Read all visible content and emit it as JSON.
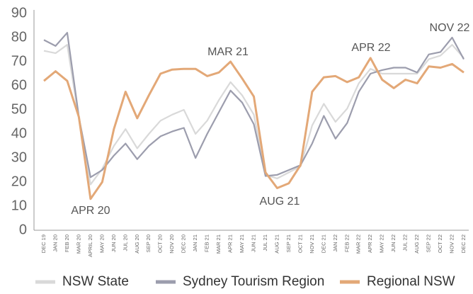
{
  "chart_data": {
    "type": "line",
    "categories": [
      "DEC 19",
      "JAN 20",
      "FEB 20",
      "MAR 20",
      "APRIL 20",
      "MAY 20",
      "JUN 20",
      "JUL 20",
      "AUG 20",
      "SEP 20",
      "OCT 20",
      "NOV 20",
      "DEC 20",
      "JAN 21",
      "FEB 21",
      "MAR 21",
      "APR 21",
      "MAY 21",
      "JUN 21",
      "JUL 21",
      "AUG 21",
      "SEP 21",
      "OCT 21",
      "NOV 21",
      "DEC 21",
      "JAN 22",
      "FEB 22",
      "MAR 22",
      "APR 22",
      "MAY 22",
      "JUN 22",
      "JUL 22",
      "AUG 22",
      "SEP 22",
      "OCT 22",
      "NOV 22",
      "DEC 22"
    ],
    "series": [
      {
        "name": "NSW State",
        "color": "#d9d9d9",
        "values": [
          74.5,
          73.5,
          77,
          46,
          19,
          25.5,
          35,
          42,
          34,
          40,
          45.5,
          48,
          50,
          40,
          45.5,
          54,
          61.5,
          56,
          48,
          23,
          21.5,
          24,
          26.5,
          43.5,
          52.5,
          45,
          50.5,
          61,
          67,
          65,
          65,
          65,
          65,
          71,
          72.5,
          77,
          71.5
        ]
      },
      {
        "name": "Sydney Tourism Region",
        "color": "#9c9dad",
        "values": [
          79,
          76.5,
          82,
          47,
          22,
          25,
          31,
          36,
          29.5,
          35,
          39,
          41,
          42.5,
          30,
          40,
          49,
          58,
          53,
          44,
          22.5,
          23,
          25,
          27,
          36,
          47.5,
          38,
          44.5,
          57.5,
          65,
          66.5,
          67.5,
          67.5,
          65.5,
          73,
          74,
          80,
          71
        ]
      },
      {
        "name": "Regional NSW",
        "color": "#e3a877",
        "values": [
          62,
          66,
          62,
          47,
          13,
          20,
          42,
          57.5,
          46.5,
          56,
          65,
          66.7,
          67,
          67,
          64,
          65.5,
          70,
          63,
          55.5,
          24,
          17.5,
          19.5,
          27,
          57.5,
          63.5,
          64,
          61.5,
          63.5,
          71.5,
          62.5,
          59,
          62.5,
          61,
          68,
          67.5,
          69,
          65.5
        ]
      }
    ],
    "annotations": [
      "APR 20",
      "MAR 21",
      "AUG 21",
      "APR 22",
      "NOV 22"
    ],
    "ylim": [
      0,
      90
    ],
    "yticks": [
      0,
      10,
      20,
      30,
      40,
      50,
      60,
      70,
      80,
      90
    ],
    "grid": false,
    "legend": "bottom"
  }
}
